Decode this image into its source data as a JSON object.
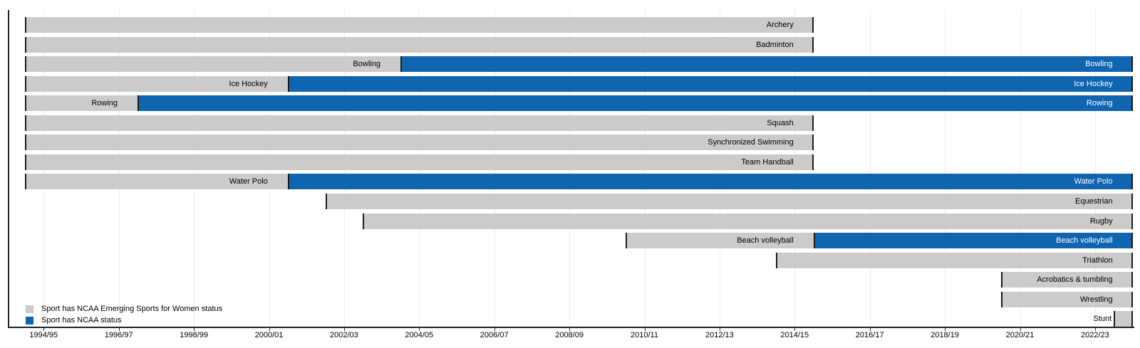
{
  "chart_data": {
    "type": "bar",
    "subtype": "gantt-timeline",
    "title": "",
    "x_axis": {
      "range_years": [
        1994.5,
        2024.0
      ],
      "ticks": [
        {
          "label": "1994/95",
          "year": 1995
        },
        {
          "label": "1996/97",
          "year": 1997
        },
        {
          "label": "1998/99",
          "year": 1999
        },
        {
          "label": "2000/01",
          "year": 2001
        },
        {
          "label": "2002/03",
          "year": 2003
        },
        {
          "label": "2004/05",
          "year": 2005
        },
        {
          "label": "2006/07",
          "year": 2007
        },
        {
          "label": "2008/09",
          "year": 2009
        },
        {
          "label": "2010/11",
          "year": 2011
        },
        {
          "label": "2012/13",
          "year": 2013
        },
        {
          "label": "2014/15",
          "year": 2015
        },
        {
          "label": "2016/17",
          "year": 2017
        },
        {
          "label": "2018/19",
          "year": 2019
        },
        {
          "label": "2020/21",
          "year": 2021
        },
        {
          "label": "2022/23",
          "year": 2023
        }
      ]
    },
    "legend": [
      {
        "key": "emerging",
        "label": "Sport has NCAA Emerging Sports for Women status",
        "color": "#cccbc9"
      },
      {
        "key": "ncaa",
        "label": "Sport has NCAA status",
        "color": "#1065b0"
      }
    ],
    "sports": [
      {
        "name": "Archery",
        "segments": [
          {
            "status": "emerging",
            "start": 1994.5,
            "end": 2015.5
          }
        ]
      },
      {
        "name": "Badminton",
        "segments": [
          {
            "status": "emerging",
            "start": 1994.5,
            "end": 2015.5
          }
        ]
      },
      {
        "name": "Bowling",
        "segments": [
          {
            "status": "emerging",
            "start": 1994.5,
            "end": 2004.5
          },
          {
            "status": "ncaa",
            "start": 2004.5,
            "end": 2024.0
          }
        ]
      },
      {
        "name": "Ice Hockey",
        "segments": [
          {
            "status": "emerging",
            "start": 1994.5,
            "end": 2001.5
          },
          {
            "status": "ncaa",
            "start": 2001.5,
            "end": 2024.0
          }
        ]
      },
      {
        "name": "Rowing",
        "segments": [
          {
            "status": "emerging",
            "start": 1994.5,
            "end": 1997.5
          },
          {
            "status": "ncaa",
            "start": 1997.5,
            "end": 2024.0
          }
        ]
      },
      {
        "name": "Squash",
        "segments": [
          {
            "status": "emerging",
            "start": 1994.5,
            "end": 2015.5
          }
        ]
      },
      {
        "name": "Synchronized Swimming",
        "segments": [
          {
            "status": "emerging",
            "start": 1994.5,
            "end": 2015.5
          }
        ]
      },
      {
        "name": "Team Handball",
        "segments": [
          {
            "status": "emerging",
            "start": 1994.5,
            "end": 2015.5
          }
        ]
      },
      {
        "name": "Water Polo",
        "segments": [
          {
            "status": "emerging",
            "start": 1994.5,
            "end": 2001.5
          },
          {
            "status": "ncaa",
            "start": 2001.5,
            "end": 2024.0
          }
        ]
      },
      {
        "name": "Equestrian",
        "segments": [
          {
            "status": "emerging",
            "start": 2002.5,
            "end": 2024.0
          }
        ]
      },
      {
        "name": "Rugby",
        "segments": [
          {
            "status": "emerging",
            "start": 2003.5,
            "end": 2024.0
          }
        ]
      },
      {
        "name": "Beach volleyball",
        "segments": [
          {
            "status": "emerging",
            "start": 2010.5,
            "end": 2015.5
          },
          {
            "status": "ncaa",
            "start": 2015.5,
            "end": 2024.0
          }
        ]
      },
      {
        "name": "Triathlon",
        "segments": [
          {
            "status": "emerging",
            "start": 2014.5,
            "end": 2024.0
          }
        ]
      },
      {
        "name": "Acrobatics & tumbling",
        "segments": [
          {
            "status": "emerging",
            "start": 2020.5,
            "end": 2024.0
          }
        ]
      },
      {
        "name": "Wrestling",
        "segments": [
          {
            "status": "emerging",
            "start": 2020.5,
            "end": 2024.0
          }
        ]
      },
      {
        "name": "Stunt",
        "segments": [
          {
            "status": "emerging",
            "start": 2023.5,
            "end": 2024.0
          }
        ]
      }
    ],
    "colors": {
      "bar_border": "#1c1c1c",
      "axis": "#222222",
      "gridline": "#ececea",
      "label_on_gray": "#000000",
      "label_on_blue": "#ffffff"
    }
  }
}
